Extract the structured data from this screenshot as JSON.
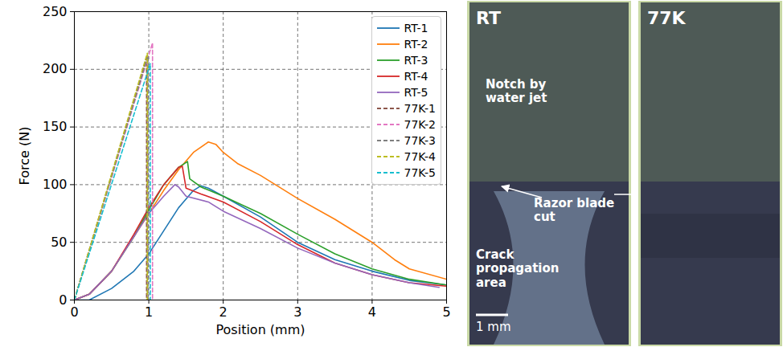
{
  "chart_data": {
    "type": "line",
    "x_label": "Position (mm)",
    "y_label": "Force (N)",
    "xlim": [
      0,
      5
    ],
    "ylim": [
      0,
      250
    ],
    "xticks": [
      0,
      1,
      2,
      3,
      4,
      5
    ],
    "yticks": [
      0,
      50,
      100,
      150,
      200,
      250
    ],
    "grid": true,
    "legend": "upper right",
    "series": [
      {
        "name": "RT-1",
        "color": "#1f77b4",
        "line_style": "solid",
        "x": [
          0,
          0.2,
          0.5,
          0.8,
          1.0,
          1.2,
          1.4,
          1.6,
          1.7,
          1.8,
          2.0,
          2.5,
          3.0,
          3.5,
          4.0,
          4.5,
          5.0
        ],
        "values": [
          0,
          0,
          10,
          25,
          40,
          60,
          80,
          95,
          99,
          97,
          90,
          72,
          50,
          35,
          25,
          17,
          13
        ]
      },
      {
        "name": "RT-2",
        "color": "#ff7f0e",
        "line_style": "solid",
        "x": [
          0,
          0.2,
          0.5,
          0.8,
          1.0,
          1.2,
          1.4,
          1.6,
          1.8,
          1.9,
          2.0,
          2.2,
          2.5,
          3.0,
          3.5,
          4.0,
          4.3,
          4.5,
          5.0
        ],
        "values": [
          0,
          5,
          25,
          55,
          75,
          95,
          113,
          128,
          137,
          135,
          128,
          118,
          108,
          88,
          70,
          50,
          35,
          27,
          18
        ]
      },
      {
        "name": "RT-3",
        "color": "#2ca02c",
        "line_style": "solid",
        "x": [
          0,
          0.2,
          0.5,
          0.8,
          1.0,
          1.2,
          1.4,
          1.52,
          1.55,
          1.7,
          2.0,
          2.5,
          3.0,
          3.5,
          4.0,
          4.5,
          5.0
        ],
        "values": [
          0,
          5,
          25,
          55,
          78,
          100,
          115,
          120,
          105,
          98,
          90,
          75,
          57,
          40,
          27,
          18,
          13
        ]
      },
      {
        "name": "RT-4",
        "color": "#d62728",
        "line_style": "solid",
        "x": [
          0,
          0.2,
          0.5,
          0.8,
          1.0,
          1.2,
          1.4,
          1.45,
          1.5,
          1.7,
          2.0,
          2.5,
          3.0,
          3.5,
          4.0,
          4.5,
          5.0
        ],
        "values": [
          0,
          5,
          25,
          57,
          80,
          100,
          115,
          116,
          97,
          92,
          85,
          68,
          48,
          32,
          22,
          15,
          12
        ]
      },
      {
        "name": "RT-5",
        "color": "#9467bd",
        "line_style": "solid",
        "x": [
          0,
          0.2,
          0.5,
          0.8,
          1.0,
          1.2,
          1.35,
          1.4,
          1.5,
          1.8,
          2.0,
          2.5,
          3.0,
          3.5,
          4.0,
          4.5,
          4.9
        ],
        "values": [
          0,
          5,
          25,
          55,
          75,
          90,
          100,
          98,
          90,
          85,
          77,
          62,
          45,
          32,
          22,
          15,
          11
        ]
      },
      {
        "name": "77K-1",
        "color": "#8c564b",
        "line_style": "dashed",
        "x": [
          0,
          0.97,
          0.97
        ],
        "values": [
          0,
          210,
          0
        ]
      },
      {
        "name": "77K-2",
        "color": "#e377c2",
        "line_style": "dashed",
        "x": [
          0,
          1.05,
          1.05
        ],
        "values": [
          0,
          223,
          0
        ]
      },
      {
        "name": "77K-3",
        "color": "#7f7f7f",
        "line_style": "dashed",
        "x": [
          0,
          0.99,
          0.99
        ],
        "values": [
          0,
          212,
          0
        ]
      },
      {
        "name": "77K-4",
        "color": "#bcbd22",
        "line_style": "dashed",
        "x": [
          0,
          0.98,
          0.98
        ],
        "values": [
          0,
          214,
          0
        ]
      },
      {
        "name": "77K-5",
        "color": "#17becf",
        "line_style": "dashed",
        "x": [
          0,
          1.02,
          1.02
        ],
        "values": [
          0,
          205,
          0
        ]
      }
    ]
  },
  "photos": [
    {
      "title": "RT",
      "labels": [
        "Notch by water jet",
        "Razor blade cut",
        "Crack propagation area"
      ],
      "scale_bar": "1 mm"
    },
    {
      "title": "77K"
    }
  ]
}
